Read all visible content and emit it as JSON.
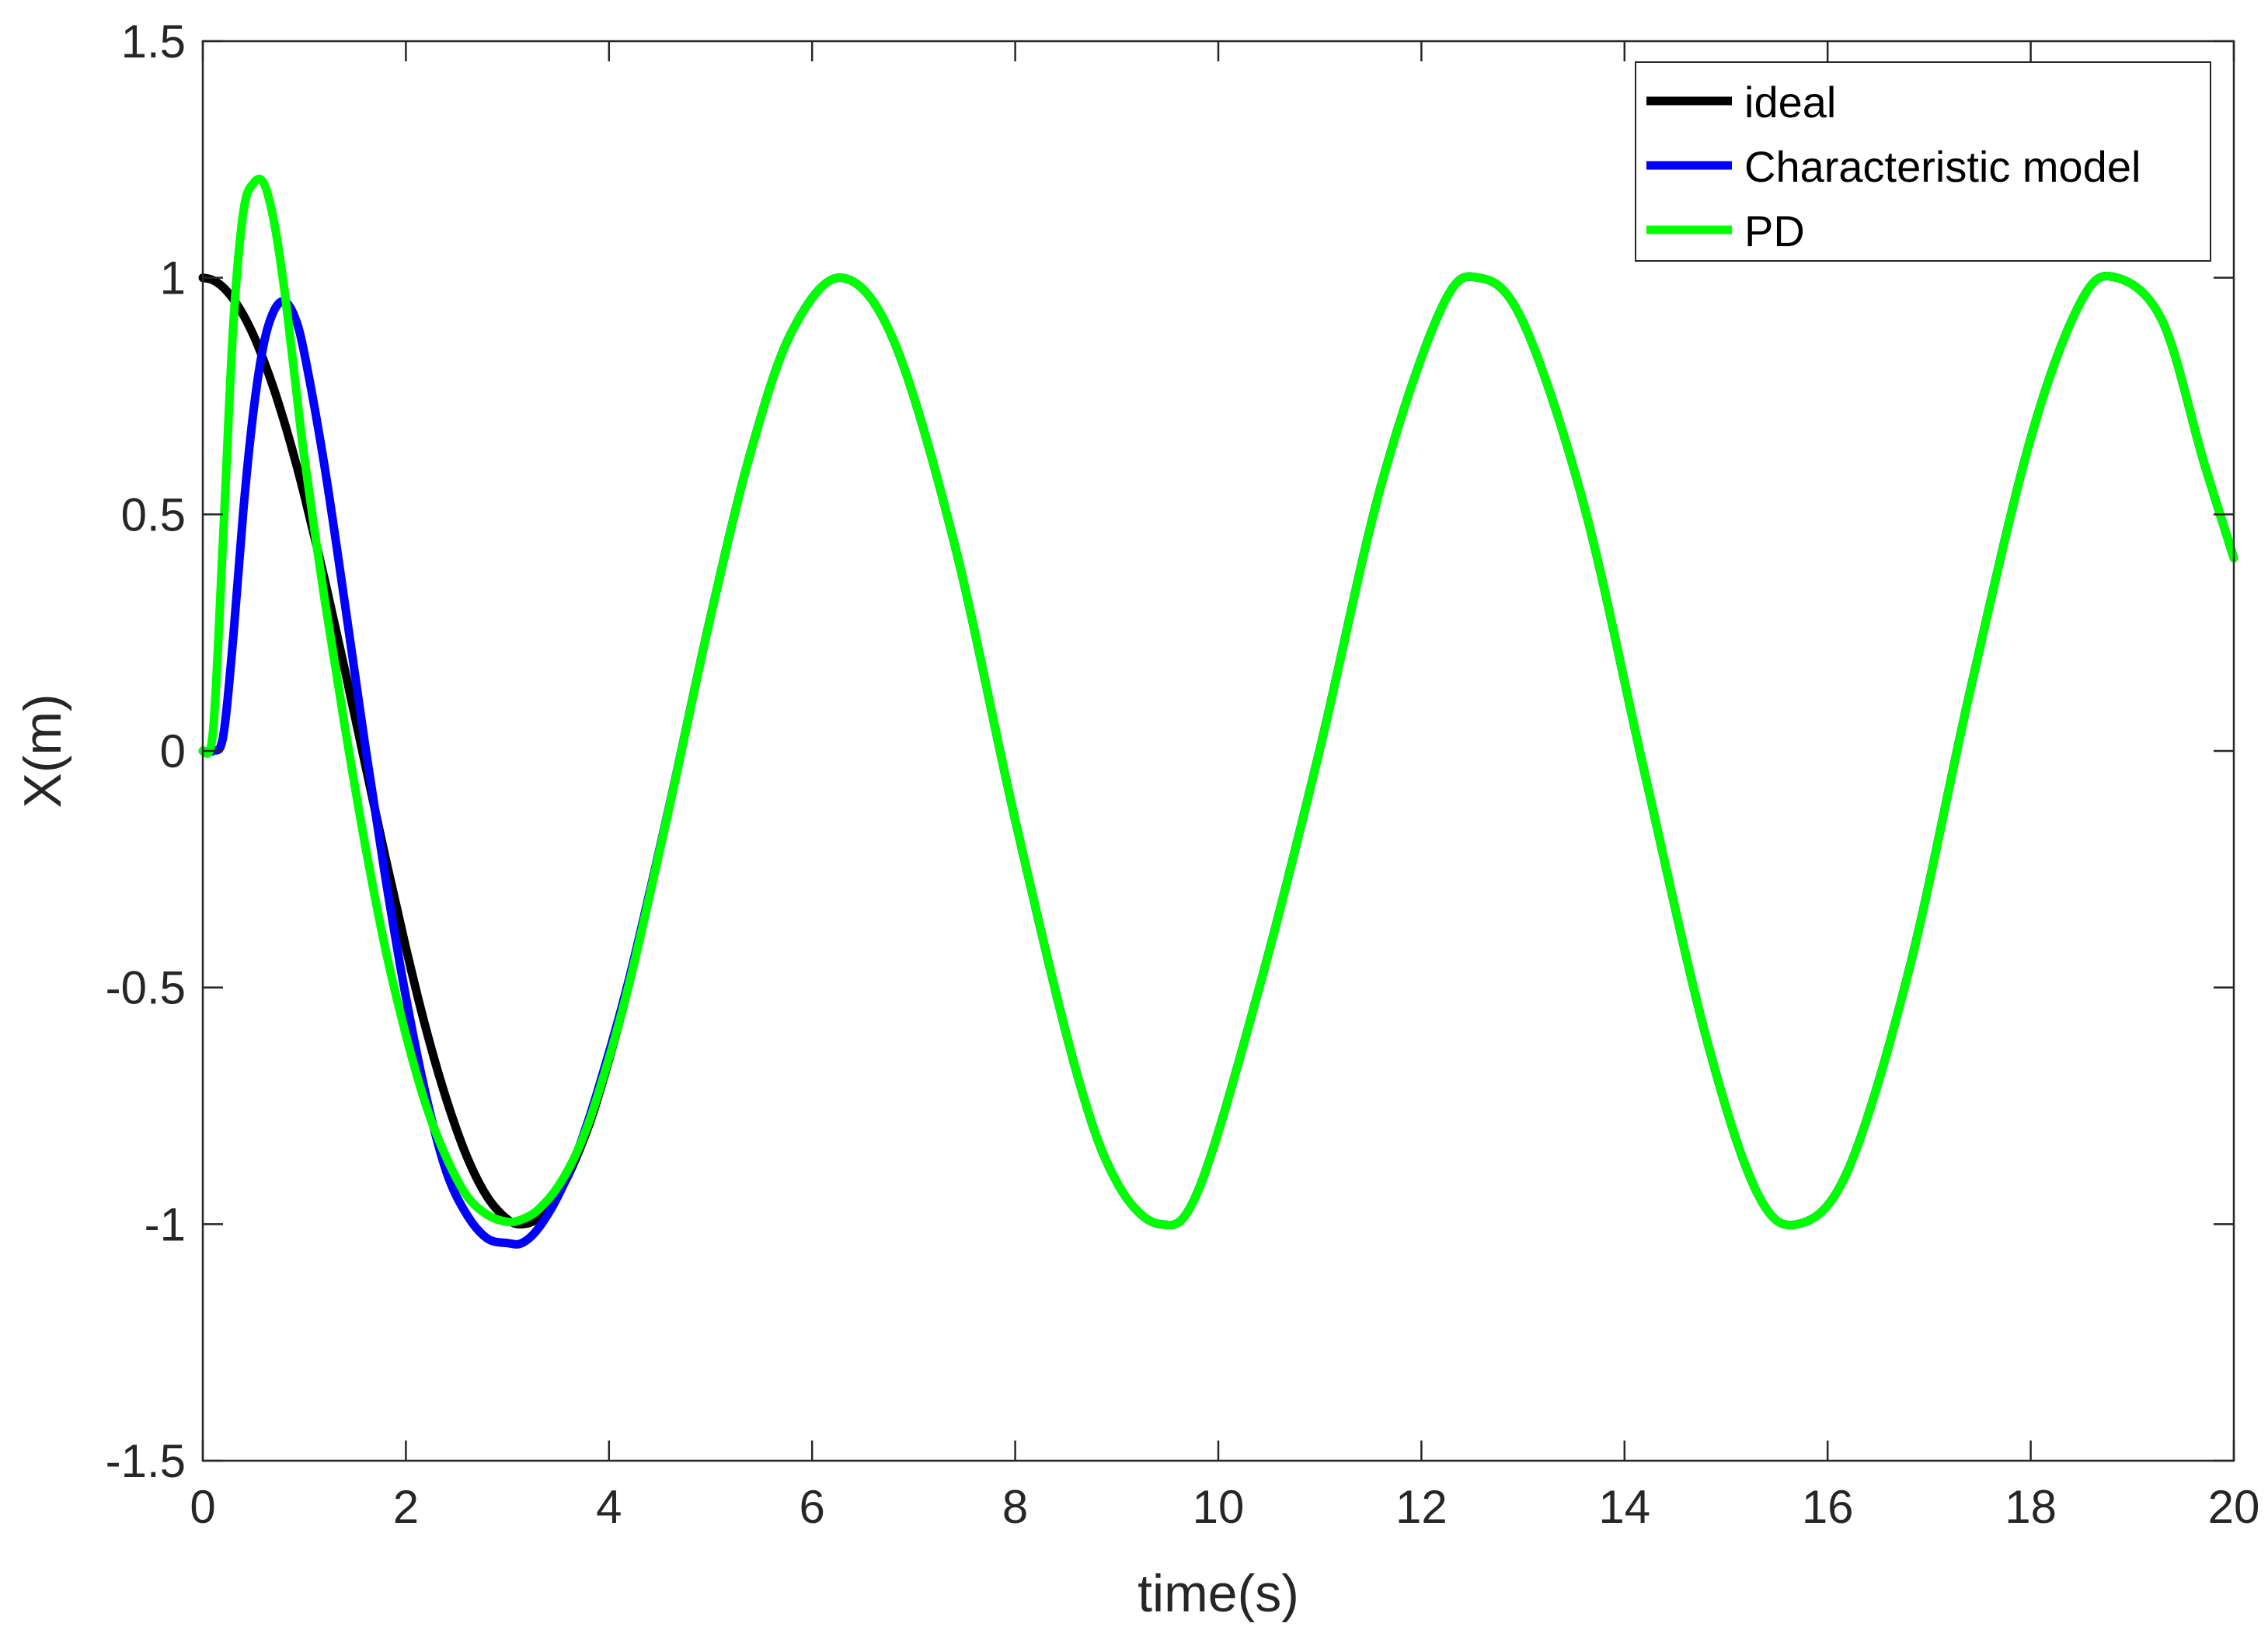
{
  "chart_data": {
    "type": "line",
    "title": "",
    "xlabel": "time(s)",
    "ylabel": "X(m)",
    "xlim": [
      0,
      20
    ],
    "ylim": [
      -1.5,
      1.5
    ],
    "x_ticks": [
      0,
      2,
      4,
      6,
      8,
      10,
      12,
      14,
      16,
      18,
      20
    ],
    "y_ticks": [
      -1.5,
      -1,
      -0.5,
      0,
      0.5,
      1,
      1.5
    ],
    "x_tick_labels": [
      "0",
      "2",
      "4",
      "6",
      "8",
      "10",
      "12",
      "14",
      "16",
      "18",
      "20"
    ],
    "y_tick_labels": [
      "-1.5",
      "-1",
      "-0.5",
      "0",
      "0.5",
      "1",
      "1.5"
    ],
    "grid": false,
    "legend_position": "top-right",
    "x": [
      0,
      0.1,
      0.2,
      0.3,
      0.4,
      0.5,
      0.6,
      0.7,
      0.8,
      0.9,
      1.0,
      1.2,
      1.4,
      1.6,
      1.8,
      2.0,
      2.2,
      2.4,
      2.6,
      2.8,
      3.0,
      3.1416,
      3.3,
      3.5,
      3.7,
      3.9,
      4.2,
      4.6,
      5.0,
      5.4,
      5.8,
      6.2832,
      6.8,
      7.4,
      8.0,
      8.6,
      9.0,
      9.4248,
      9.8,
      10.4,
      11.0,
      11.6,
      12.2,
      12.5664,
      13.0,
      13.6,
      14.2,
      14.8,
      15.3,
      15.708,
      16.2,
      16.8,
      17.4,
      18.0,
      18.5,
      18.8496,
      19.3,
      19.7,
      20.0
    ],
    "series": [
      {
        "name": "ideal",
        "color": "#000000",
        "values": [
          1.0,
          0.995,
          0.98,
          0.955,
          0.921,
          0.878,
          0.825,
          0.765,
          0.697,
          0.622,
          0.54,
          0.362,
          0.17,
          -0.029,
          -0.227,
          -0.416,
          -0.589,
          -0.737,
          -0.857,
          -0.942,
          -0.99,
          -1.0,
          -0.987,
          -0.936,
          -0.848,
          -0.726,
          -0.49,
          -0.112,
          0.284,
          0.635,
          0.886,
          1.0,
          0.869,
          0.439,
          -0.146,
          -0.676,
          -0.911,
          -1.0,
          -0.93,
          -0.503,
          0.004,
          0.559,
          0.937,
          1.0,
          0.907,
          0.52,
          -0.048,
          -0.602,
          -0.931,
          -1.0,
          -0.886,
          -0.464,
          0.124,
          0.661,
          0.952,
          1.0,
          0.907,
          0.614,
          0.408
        ]
      },
      {
        "name": "Characteristic model",
        "color": "#0000ff",
        "values": [
          0.0,
          0.0,
          0.03,
          0.24,
          0.51,
          0.72,
          0.86,
          0.93,
          0.95,
          0.92,
          0.84,
          0.6,
          0.31,
          0.01,
          -0.27,
          -0.52,
          -0.73,
          -0.89,
          -0.98,
          -1.03,
          -1.04,
          -1.04,
          -1.01,
          -0.94,
          -0.84,
          -0.71,
          -0.48,
          -0.11,
          0.284,
          0.635,
          0.886,
          1.0,
          0.869,
          0.439,
          -0.146,
          -0.676,
          -0.911,
          -1.0,
          -0.93,
          -0.503,
          0.004,
          0.559,
          0.937,
          1.0,
          0.907,
          0.52,
          -0.048,
          -0.602,
          -0.931,
          -1.0,
          -0.886,
          -0.464,
          0.124,
          0.661,
          0.952,
          1.0,
          0.907,
          0.614,
          0.408
        ]
      },
      {
        "name": "PD",
        "color": "#00ff00",
        "values": [
          0.0,
          0.04,
          0.45,
          0.9,
          1.14,
          1.2,
          1.2,
          1.12,
          0.98,
          0.8,
          0.62,
          0.32,
          0.05,
          -0.2,
          -0.42,
          -0.6,
          -0.75,
          -0.86,
          -0.94,
          -0.98,
          -0.995,
          -0.99,
          -0.97,
          -0.92,
          -0.84,
          -0.72,
          -0.49,
          -0.112,
          0.284,
          0.635,
          0.886,
          1.0,
          0.869,
          0.439,
          -0.146,
          -0.676,
          -0.911,
          -1.0,
          -0.93,
          -0.503,
          0.004,
          0.559,
          0.937,
          1.0,
          0.907,
          0.52,
          -0.048,
          -0.602,
          -0.931,
          -1.0,
          -0.886,
          -0.464,
          0.124,
          0.661,
          0.952,
          1.0,
          0.907,
          0.614,
          0.408
        ]
      }
    ]
  }
}
